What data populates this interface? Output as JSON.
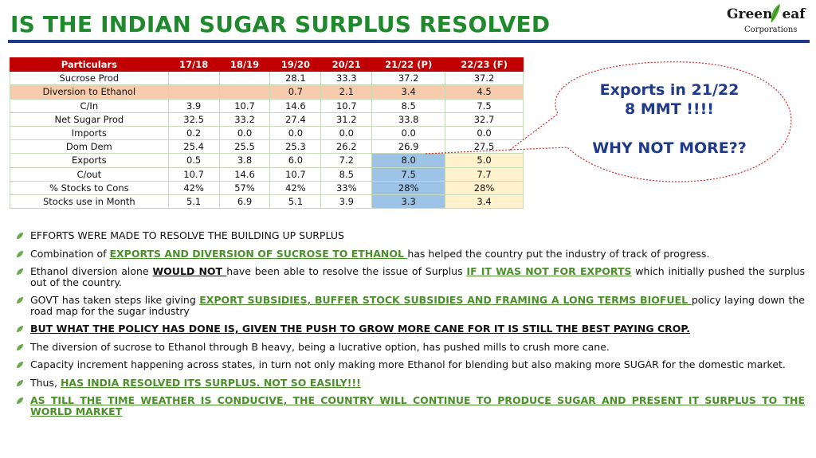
{
  "header": {
    "title": "IS THE INDIAN SUGAR SURPLUS RESOLVED",
    "logo_name_1": "Green",
    "logo_name_2": "eaf",
    "logo_sub": "Corporations",
    "rule_color": "#1f3a8a",
    "title_color": "#1f8a2c"
  },
  "table": {
    "headers": [
      "Particulars",
      "17/18",
      "18/19",
      "19/20",
      "20/21",
      "21/22 (P)",
      "22/23 (F)"
    ],
    "rows": [
      [
        "Sucrose Prod",
        "",
        "",
        "28.1",
        "33.3",
        "37.2",
        "37.2"
      ],
      [
        "Diversion to Ethanol",
        "",
        "",
        "0.7",
        "2.1",
        "3.4",
        "4.5"
      ],
      [
        "C/In",
        "3.9",
        "10.7",
        "14.6",
        "10.7",
        "8.5",
        "7.5"
      ],
      [
        "Net Sugar Prod",
        "32.5",
        "33.2",
        "27.4",
        "31.2",
        "33.8",
        "32.7"
      ],
      [
        "Imports",
        "0.2",
        "0.0",
        "0.0",
        "0.0",
        "0.0",
        "0.0"
      ],
      [
        "Dom Dem",
        "25.4",
        "25.5",
        "25.3",
        "26.2",
        "26.9",
        "27.5"
      ],
      [
        "Exports",
        "0.5",
        "3.8",
        "6.0",
        "7.2",
        "8.0",
        "5.0"
      ],
      [
        "C/out",
        "10.7",
        "14.6",
        "10.7",
        "8.5",
        "7.5",
        "7.7"
      ],
      [
        "% Stocks to Cons",
        "42%",
        "57%",
        "42%",
        "33%",
        "28%",
        "28%"
      ],
      [
        "Stocks use in Month",
        "5.1",
        "6.9",
        "5.1",
        "3.9",
        "3.3",
        "3.4"
      ]
    ],
    "header_color": "#c00000"
  },
  "callout": {
    "line1": "Exports in 21/22",
    "line2": "8 MMT !!!!",
    "line3": "WHY NOT MORE??"
  },
  "bullets": {
    "b1": "EFFORTS WERE MADE TO RESOLVE THE BUILDING UP SURPLUS",
    "b2_pre": "Combination of ",
    "b2_hl": "EXPORTS AND DIVERSION OF SUCROSE TO ETHANOL ",
    "b2_post": "has helped the country put the industry of track of progress.",
    "b3_pre": "Ethanol diversion alone ",
    "b3_bold": "WOULD NOT ",
    "b3_mid": "have been able to resolve the issue of Surplus ",
    "b3_hl": "IF IT WAS NOT FOR EXPORTS",
    "b3_post": " which initially pushed the surplus out of the country.",
    "b4_pre": "GOVT has taken steps like giving ",
    "b4_hl": "EXPORT SUBSIDIES, BUFFER STOCK SUBSIDIES AND FRAMING A LONG TERMS BIOFUEL ",
    "b4_post": "policy laying down the road map for the sugar industry",
    "b5": "BUT WHAT THE POLICY HAS DONE IS, GIVEN THE PUSH TO GROW MORE CANE FOR IT IS STILL THE BEST PAYING CROP.",
    "b6": "The diversion of sucrose to Ethanol through B heavy, being a lucrative option, has pushed mills to crush more cane.",
    "b7": "Capacity increment happening across states, in turn not only making more Ethanol for blending but also making more SUGAR for the domestic market.",
    "b8_pre": "Thus, ",
    "b8_hl": "HAS INDIA RESOLVED ITS SURPLUS. NOT SO EASILY!!!",
    "b9": "AS TILL THE TIME WEATHER IS CONDUCIVE, THE COUNTRY WILL CONTINUE TO PRODUCE SUGAR AND PRESENT IT SURPLUS TO THE WORLD MARKET ",
    "bullet_icon": "leaf-bullet-icon",
    "accent_green": "#4b8f2b"
  }
}
